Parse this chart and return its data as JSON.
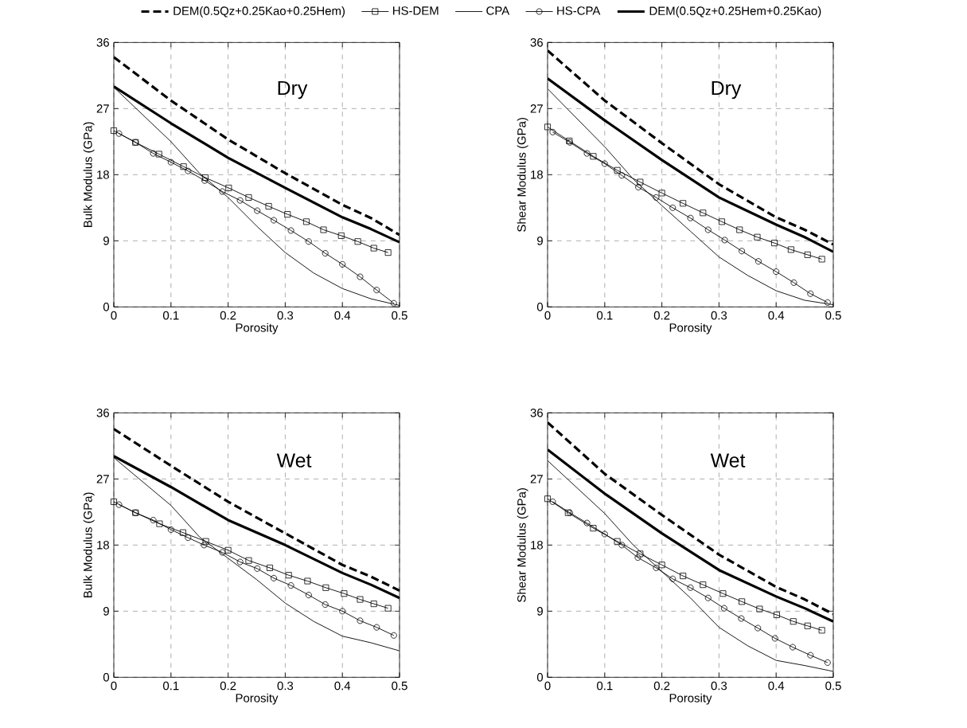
{
  "chart_data": [
    {
      "type": "line",
      "xlabel": "Porosity",
      "ylabel": "Bulk Modulus (GPa)",
      "xlim": [
        0,
        0.5
      ],
      "ylim": [
        0,
        36
      ],
      "xticks": [
        0,
        0.1,
        0.2,
        0.3,
        0.4,
        0.5
      ],
      "yticks": [
        0,
        9,
        18,
        27,
        36
      ],
      "grid": true,
      "legend": "top",
      "annotations": [
        "Dry"
      ],
      "series": [
        {
          "name": "DEM(0.5Qz+0.25Kao+0.25Hem)",
          "color": "#000000",
          "line_style": "dashed",
          "marker": "none",
          "x": [
            0,
            0.1,
            0.2,
            0.3,
            0.4,
            0.45,
            0.5
          ],
          "values": [
            34.0,
            28.1,
            22.8,
            18.2,
            13.9,
            12.1,
            9.8
          ]
        },
        {
          "name": "HS-DEM",
          "color": "#000000",
          "line_style": "solid",
          "marker": "square",
          "x": [
            0,
            0.038,
            0.079,
            0.122,
            0.16,
            0.201,
            0.236,
            0.271,
            0.304,
            0.337,
            0.367,
            0.398,
            0.427,
            0.455,
            0.48
          ],
          "values": [
            24.0,
            22.4,
            20.8,
            19.1,
            17.6,
            16.2,
            14.9,
            13.7,
            12.6,
            11.6,
            10.5,
            9.7,
            8.9,
            8.0,
            7.4
          ]
        },
        {
          "name": "CPA",
          "color": "#000000",
          "line_style": "solid",
          "marker": "none",
          "x": [
            0,
            0.1,
            0.15,
            0.2,
            0.25,
            0.3,
            0.35,
            0.4,
            0.45,
            0.5
          ],
          "values": [
            29.9,
            22.5,
            18.2,
            14.9,
            11.0,
            7.4,
            4.6,
            2.5,
            1.1,
            0.2
          ]
        },
        {
          "name": "HS-CPA",
          "color": "#000000",
          "line_style": "solid",
          "marker": "circle",
          "x": [
            0.009,
            0.038,
            0.069,
            0.1,
            0.13,
            0.159,
            0.19,
            0.221,
            0.251,
            0.28,
            0.31,
            0.341,
            0.37,
            0.4,
            0.431,
            0.46,
            0.49
          ],
          "values": [
            23.6,
            22.4,
            20.9,
            19.7,
            18.5,
            17.2,
            15.7,
            14.5,
            13.1,
            11.8,
            10.4,
            8.9,
            7.3,
            5.8,
            4.1,
            2.3,
            0.5
          ]
        },
        {
          "name": "DEM(0.5Qz+0.25Hem+0.25Kao)",
          "color": "#000000",
          "line_style": "solid",
          "marker": "none",
          "x": [
            0,
            0.1,
            0.2,
            0.3,
            0.4,
            0.45,
            0.5
          ],
          "values": [
            30.0,
            25.0,
            20.3,
            16.2,
            12.2,
            10.6,
            8.8
          ]
        }
      ]
    },
    {
      "type": "line",
      "xlabel": "Porosity",
      "ylabel": "Shear Modulus (GPa)",
      "xlim": [
        0,
        0.5
      ],
      "ylim": [
        0,
        36
      ],
      "xticks": [
        0,
        0.1,
        0.2,
        0.3,
        0.4,
        0.5
      ],
      "yticks": [
        0,
        9,
        18,
        27,
        36
      ],
      "grid": true,
      "annotations": [
        "Dry"
      ],
      "series": [
        {
          "color": "#000000",
          "line_style": "dashed",
          "marker": "none",
          "x": [
            0,
            0.1,
            0.2,
            0.3,
            0.4,
            0.45,
            0.5
          ],
          "values": [
            34.9,
            28.1,
            22.3,
            16.7,
            12.2,
            10.5,
            8.5
          ]
        },
        {
          "color": "#000000",
          "line_style": "solid",
          "marker": "square",
          "x": [
            0,
            0.038,
            0.08,
            0.122,
            0.162,
            0.2,
            0.237,
            0.272,
            0.305,
            0.336,
            0.367,
            0.397,
            0.426,
            0.455,
            0.48
          ],
          "values": [
            24.5,
            22.6,
            20.5,
            18.6,
            17.0,
            15.5,
            14.1,
            12.8,
            11.6,
            10.5,
            9.5,
            8.7,
            7.8,
            7.1,
            6.5
          ]
        },
        {
          "color": "#000000",
          "line_style": "solid",
          "marker": "none",
          "x": [
            0,
            0.1,
            0.15,
            0.2,
            0.25,
            0.3,
            0.35,
            0.4,
            0.45,
            0.5
          ],
          "values": [
            29.7,
            21.8,
            17.4,
            13.8,
            10.3,
            6.8,
            4.3,
            2.2,
            0.9,
            0.3
          ]
        },
        {
          "color": "#000000",
          "line_style": "solid",
          "marker": "circle",
          "x": [
            0.009,
            0.039,
            0.069,
            0.1,
            0.13,
            0.159,
            0.19,
            0.219,
            0.25,
            0.281,
            0.31,
            0.34,
            0.369,
            0.4,
            0.431,
            0.46,
            0.49
          ],
          "values": [
            23.8,
            22.4,
            20.9,
            19.5,
            17.9,
            16.3,
            14.9,
            13.5,
            12.1,
            10.5,
            9.1,
            7.6,
            6.2,
            4.8,
            3.3,
            1.8,
            0.6
          ]
        },
        {
          "color": "#000000",
          "line_style": "solid",
          "marker": "none",
          "x": [
            0,
            0.1,
            0.2,
            0.3,
            0.4,
            0.45,
            0.5
          ],
          "values": [
            31.1,
            25.4,
            20.0,
            14.9,
            11.2,
            9.5,
            7.5
          ]
        }
      ]
    },
    {
      "type": "line",
      "xlabel": "Porosity",
      "ylabel": "Bulk Modulus (GPa)",
      "xlim": [
        0,
        0.5
      ],
      "ylim": [
        0,
        36
      ],
      "xticks": [
        0,
        0.1,
        0.2,
        0.3,
        0.4,
        0.5
      ],
      "yticks": [
        0,
        9,
        18,
        27,
        36
      ],
      "grid": true,
      "annotations": [
        "Wet"
      ],
      "series": [
        {
          "color": "#000000",
          "line_style": "dashed",
          "marker": "none",
          "x": [
            0,
            0.1,
            0.2,
            0.3,
            0.4,
            0.45,
            0.5
          ],
          "values": [
            33.8,
            28.8,
            23.9,
            19.6,
            15.3,
            13.7,
            11.8
          ]
        },
        {
          "color": "#000000",
          "line_style": "solid",
          "marker": "square",
          "x": [
            0,
            0.038,
            0.08,
            0.121,
            0.161,
            0.2,
            0.236,
            0.273,
            0.306,
            0.339,
            0.371,
            0.403,
            0.431,
            0.455,
            0.48
          ],
          "values": [
            23.9,
            22.4,
            20.9,
            19.7,
            18.5,
            17.3,
            15.9,
            14.9,
            13.9,
            13.1,
            12.2,
            11.4,
            10.6,
            10.0,
            9.4
          ]
        },
        {
          "color": "#000000",
          "line_style": "solid",
          "marker": "none",
          "x": [
            0,
            0.1,
            0.15,
            0.2,
            0.25,
            0.3,
            0.35,
            0.4,
            0.45,
            0.5
          ],
          "values": [
            29.9,
            23.4,
            19.1,
            16.2,
            13.3,
            10.1,
            7.6,
            5.6,
            4.7,
            3.6
          ]
        },
        {
          "color": "#000000",
          "line_style": "solid",
          "marker": "circle",
          "x": [
            0.009,
            0.038,
            0.069,
            0.1,
            0.13,
            0.158,
            0.19,
            0.221,
            0.251,
            0.28,
            0.31,
            0.341,
            0.37,
            0.4,
            0.431,
            0.46,
            0.49
          ],
          "values": [
            23.5,
            22.4,
            21.4,
            20.1,
            19.0,
            18.0,
            17.0,
            15.7,
            14.8,
            13.5,
            12.5,
            11.2,
            9.9,
            9.0,
            7.7,
            6.8,
            5.7
          ]
        },
        {
          "color": "#000000",
          "line_style": "solid",
          "marker": "none",
          "x": [
            0,
            0.1,
            0.2,
            0.3,
            0.4,
            0.45,
            0.5
          ],
          "values": [
            30.1,
            25.9,
            21.4,
            18.0,
            14.2,
            12.6,
            10.8
          ]
        }
      ]
    },
    {
      "type": "line",
      "xlabel": "Porosity",
      "ylabel": "Shear Modulus (GPa)",
      "xlim": [
        0,
        0.5
      ],
      "ylim": [
        0,
        36
      ],
      "xticks": [
        0,
        0.1,
        0.2,
        0.3,
        0.4,
        0.5
      ],
      "yticks": [
        0,
        9,
        18,
        27,
        36
      ],
      "grid": true,
      "annotations": [
        "Wet"
      ],
      "series": [
        {
          "color": "#000000",
          "line_style": "dashed",
          "marker": "none",
          "x": [
            0,
            0.1,
            0.2,
            0.3,
            0.4,
            0.45,
            0.5
          ],
          "values": [
            34.7,
            27.7,
            22.1,
            16.7,
            12.3,
            10.6,
            8.6
          ]
        },
        {
          "color": "#000000",
          "line_style": "solid",
          "marker": "square",
          "x": [
            0,
            0.036,
            0.08,
            0.122,
            0.162,
            0.2,
            0.237,
            0.272,
            0.307,
            0.34,
            0.371,
            0.401,
            0.43,
            0.455,
            0.48
          ],
          "values": [
            24.3,
            22.4,
            20.3,
            18.5,
            16.8,
            15.3,
            13.8,
            12.6,
            11.4,
            10.3,
            9.3,
            8.5,
            7.6,
            7.0,
            6.4
          ]
        },
        {
          "color": "#000000",
          "line_style": "solid",
          "marker": "none",
          "x": [
            0,
            0.1,
            0.15,
            0.2,
            0.25,
            0.3,
            0.35,
            0.4,
            0.45,
            0.5
          ],
          "values": [
            29.5,
            22.3,
            18.0,
            14.4,
            10.8,
            6.8,
            4.3,
            2.3,
            1.6,
            0.8
          ]
        },
        {
          "color": "#000000",
          "line_style": "solid",
          "marker": "circle",
          "x": [
            0.009,
            0.039,
            0.069,
            0.1,
            0.13,
            0.158,
            0.19,
            0.219,
            0.25,
            0.281,
            0.309,
            0.339,
            0.368,
            0.398,
            0.429,
            0.46,
            0.49
          ],
          "values": [
            23.9,
            22.4,
            21.0,
            19.5,
            18.0,
            16.3,
            14.9,
            13.4,
            12.2,
            10.8,
            9.4,
            8.0,
            6.7,
            5.3,
            4.1,
            3.0,
            2.0
          ]
        },
        {
          "color": "#000000",
          "line_style": "solid",
          "marker": "none",
          "x": [
            0,
            0.1,
            0.2,
            0.3,
            0.4,
            0.45,
            0.5
          ],
          "values": [
            31.0,
            25.0,
            19.6,
            14.6,
            11.0,
            9.4,
            7.6
          ]
        }
      ]
    }
  ]
}
